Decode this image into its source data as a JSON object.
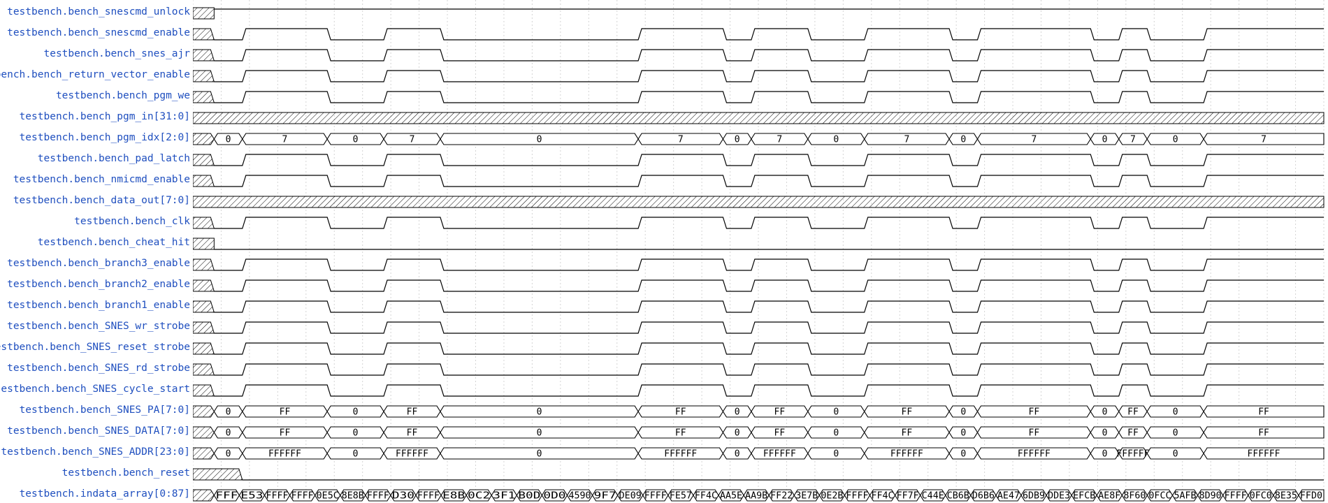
{
  "colors": {
    "name_text": "#1f4fbf",
    "wave_line": "#000000",
    "grid": "#d4d4d4",
    "background": "#ffffff"
  },
  "time_segments": [
    {
      "t0": 0,
      "t1": 3
    },
    {
      "t0": 3,
      "t1": 7
    },
    {
      "t0": 7,
      "t1": 19
    },
    {
      "t0": 19,
      "t1": 27
    },
    {
      "t0": 27,
      "t1": 35
    },
    {
      "t0": 35,
      "t1": 63
    },
    {
      "t0": 63,
      "t1": 75
    },
    {
      "t0": 75,
      "t1": 79
    },
    {
      "t0": 79,
      "t1": 87
    },
    {
      "t0": 87,
      "t1": 95
    },
    {
      "t0": 95,
      "t1": 107
    },
    {
      "t0": 107,
      "t1": 111
    },
    {
      "t0": 111,
      "t1": 127
    },
    {
      "t0": 127,
      "t1": 131
    },
    {
      "t0": 131,
      "t1": 135
    },
    {
      "t0": 135,
      "t1": 143
    },
    {
      "t0": 143,
      "t1": 160
    }
  ],
  "time_end": 160,
  "signals": [
    {
      "name": "testbench.bench_snescmd_unlock",
      "kind": "const"
    },
    {
      "name": "testbench.bench_snescmd_enable",
      "kind": "clock"
    },
    {
      "name": "testbench.bench_snes_ajr",
      "kind": "clock"
    },
    {
      "name": "testbench.bench_return_vector_enable",
      "kind": "clock"
    },
    {
      "name": "testbench.bench_pgm_we",
      "kind": "clock"
    },
    {
      "name": "testbench.bench_pgm_in[31:0]",
      "kind": "unknown"
    },
    {
      "name": "testbench.bench_pgm_idx[2:0]",
      "kind": "bus",
      "values": [
        "0",
        "7",
        "0",
        "7",
        "0",
        "7",
        "0",
        "7",
        "0",
        "7",
        "0",
        "7",
        "0",
        "7",
        "0",
        "7"
      ]
    },
    {
      "name": "testbench.bench_pad_latch",
      "kind": "clock"
    },
    {
      "name": "testbench.bench_nmicmd_enable",
      "kind": "clock"
    },
    {
      "name": "testbench.bench_data_out[7:0]",
      "kind": "unknown"
    },
    {
      "name": "testbench.bench_clk",
      "kind": "clock"
    },
    {
      "name": "testbench.bench_cheat_hit",
      "kind": "const"
    },
    {
      "name": "testbench.bench_branch3_enable",
      "kind": "clock"
    },
    {
      "name": "testbench.bench_branch2_enable",
      "kind": "clock"
    },
    {
      "name": "testbench.bench_branch1_enable",
      "kind": "clock"
    },
    {
      "name": "testbench.bench_SNES_wr_strobe",
      "kind": "clock"
    },
    {
      "name": "testbench.bench_SNES_reset_strobe",
      "kind": "clock"
    },
    {
      "name": "testbench.bench_SNES_rd_strobe",
      "kind": "clock"
    },
    {
      "name": "testbench.bench_SNES_cycle_start",
      "kind": "clock"
    },
    {
      "name": "testbench.bench_SNES_PA[7:0]",
      "kind": "bus",
      "values": [
        "0",
        "FF",
        "0",
        "FF",
        "0",
        "FF",
        "0",
        "FF",
        "0",
        "FF",
        "0",
        "FF",
        "0",
        "FF",
        "0",
        "FF"
      ]
    },
    {
      "name": "testbench.bench_SNES_DATA[7:0]",
      "kind": "bus",
      "values": [
        "0",
        "FF",
        "0",
        "FF",
        "0",
        "FF",
        "0",
        "FF",
        "0",
        "FF",
        "0",
        "FF",
        "0",
        "FF",
        "0",
        "FF"
      ]
    },
    {
      "name": "testbench.bench_SNES_ADDR[23:0]",
      "kind": "bus",
      "values": [
        "0",
        "FFFFFF",
        "0",
        "FFFFFF",
        "0",
        "FFFFFF",
        "0",
        "FFFFFF",
        "0",
        "FFFFFF",
        "0",
        "FFFFFF",
        "0",
        "FFFFFF",
        "0",
        "FFFFFF"
      ]
    },
    {
      "name": "testbench.bench_reset",
      "kind": "reset"
    },
    {
      "name": "testbench.indata_array[0:87]",
      "kind": "dense",
      "values": [
        "FFF",
        "E53",
        "FFFF",
        "FFFF",
        "0E5C",
        "8E8B",
        "FFFF",
        "D30",
        "FFFF",
        "E8B",
        "0C2",
        "3F1",
        "B0D",
        "0D0",
        "4590",
        "9F7",
        "DE09",
        "FFFF",
        "FE57",
        "FF4C",
        "AA5E",
        "AA9B",
        "FF22",
        "3E7B",
        "0E2B",
        "FFFF",
        "FF4C",
        "FF7F",
        "C44E",
        "CB6B",
        "D6B6",
        "AE47",
        "6DB9",
        "DDE3",
        "EFCB",
        "AE8F",
        "8F60",
        "0FCC",
        "5AFB",
        "8D90",
        "FFFF",
        "0FC0",
        "8E35",
        "FFD0"
      ]
    }
  ]
}
